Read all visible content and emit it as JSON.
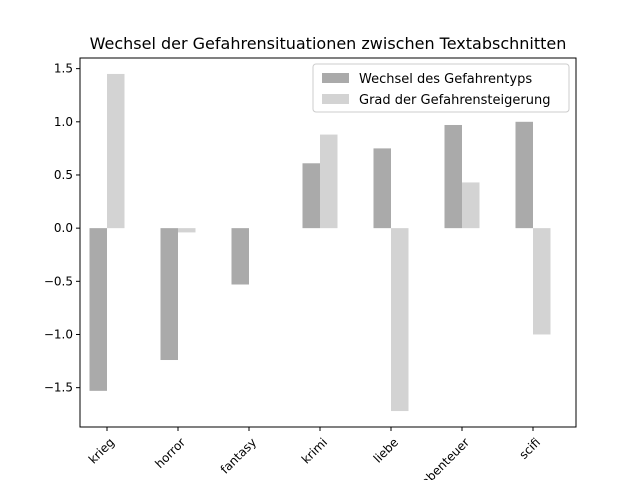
{
  "chart_data": {
    "type": "bar",
    "title": "Wechsel der Gefahrensituationen zwischen Textabschnitten",
    "xlabel": "",
    "ylabel": "",
    "categories": [
      "krieg",
      "horror",
      "fantasy",
      "krimi",
      "liebe",
      "abenteuer",
      "scifi"
    ],
    "series": [
      {
        "name": "Wechsel des Gefahrentyps",
        "values": [
          -1.53,
          -1.24,
          -0.53,
          0.61,
          0.75,
          0.97,
          1.0
        ],
        "color": "#aaaaaa"
      },
      {
        "name": "Grad der Gefahrensteigerung",
        "values": [
          1.45,
          -0.04,
          0.0,
          0.88,
          -1.72,
          0.43,
          -1.0
        ],
        "color": "#d3d3d3"
      }
    ],
    "ylim": [
      -1.87,
      1.6
    ],
    "yticks": [
      -1.5,
      -1.0,
      -0.5,
      0.0,
      0.5,
      1.0,
      1.5
    ],
    "ytick_labels": [
      "−1.5",
      "−1.0",
      "−0.5",
      "0.0",
      "0.5",
      "1.0",
      "1.5"
    ],
    "legend_position": "top-right",
    "grid": false
  }
}
